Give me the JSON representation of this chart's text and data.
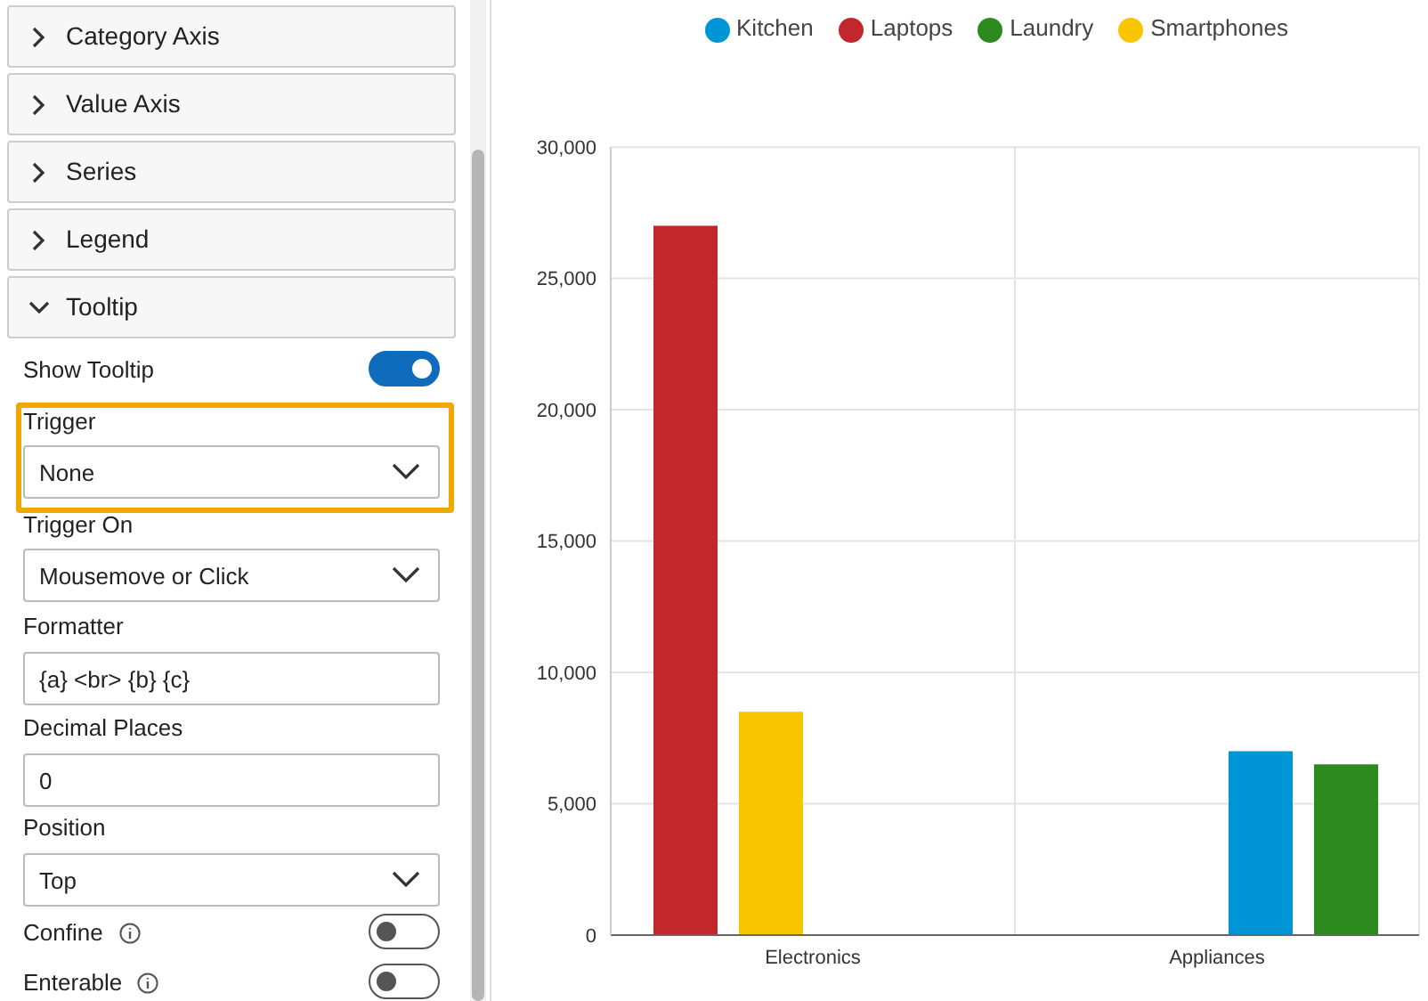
{
  "chart_data": [
    {
      "type": "other",
      "annotations": [
        "Category Axis",
        "Value Axis",
        "Series",
        "Legend",
        "Tooltip",
        "Show Tooltip",
        "Trigger",
        "None",
        "Trigger On",
        "Mousemove or Click",
        "Formatter",
        "{a} <br> {b} {c}",
        "Decimal Places",
        "0",
        "Position",
        "Top",
        "Confine",
        "Enterable"
      ]
    },
    {
      "type": "bar",
      "categories": [
        "Electronics",
        "Appliances"
      ],
      "series": [
        {
          "name": "Laptops",
          "color": "#c1272d",
          "values": [
            27000,
            null
          ]
        },
        {
          "name": "Smartphones",
          "color": "#f7c600",
          "values": [
            8500,
            null
          ]
        },
        {
          "name": "Kitchen",
          "color": "#0096d6",
          "values": [
            null,
            7000
          ]
        },
        {
          "name": "Laundry",
          "color": "#2c8a1f",
          "values": [
            null,
            6500
          ]
        }
      ],
      "ylim": [
        0,
        30000
      ],
      "yticks": [
        0,
        {
          "value": 5000,
          "label": "5,000"
        },
        {
          "value": 10000,
          "label": "10,000"
        },
        {
          "value": 15000,
          "label": "15,000"
        },
        {
          "value": 20000,
          "label": "20,000"
        },
        {
          "value": 25000,
          "label": "25,000"
        },
        {
          "value": 30000,
          "label": "30,000"
        }
      ],
      "grid": true,
      "legend": "top"
    }
  ]
}
